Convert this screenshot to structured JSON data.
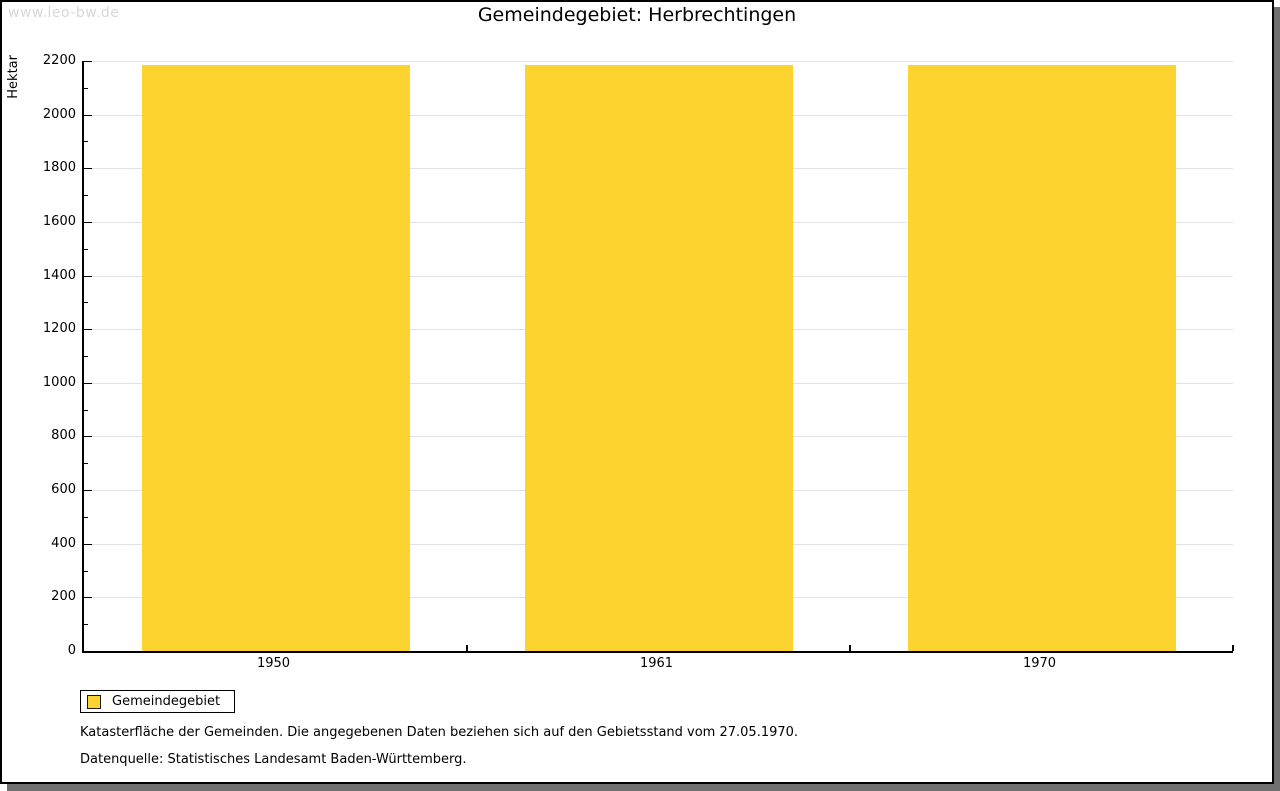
{
  "watermark": "www.leo-bw.de",
  "title": "Gemeindegebiet: Herbrechtingen",
  "chart_data": {
    "type": "bar",
    "title": "Gemeindegebiet: Herbrechtingen",
    "categories": [
      "1950",
      "1961",
      "1970"
    ],
    "series": [
      {
        "name": "Gemeindegebiet",
        "values": [
          2187,
          2187,
          2187
        ]
      }
    ],
    "xlabel": "",
    "ylabel": "Hektar",
    "ylim": [
      0,
      2200
    ],
    "ytick_step": 200,
    "yminor_step": 100,
    "grid": true,
    "bar_color": "#fdd32f",
    "legend_position": "bottom-left"
  },
  "legend": {
    "label": "Gemeindegebiet",
    "swatch_color": "#fdd32f"
  },
  "footnotes": [
    "Katasterfläche der Gemeinden. Die angegebenen Daten beziehen sich auf den Gebietsstand vom 27.05.1970.",
    "Datenquelle: Statistisches Landesamt Baden-Württemberg."
  ],
  "colors": {
    "bar": "#fdd32f",
    "gridline": "#e2e2e2",
    "axis": "#000000",
    "watermark": "#d8d8d8",
    "frame_shadow": "#6f6f6f",
    "background": "#ffffff"
  }
}
